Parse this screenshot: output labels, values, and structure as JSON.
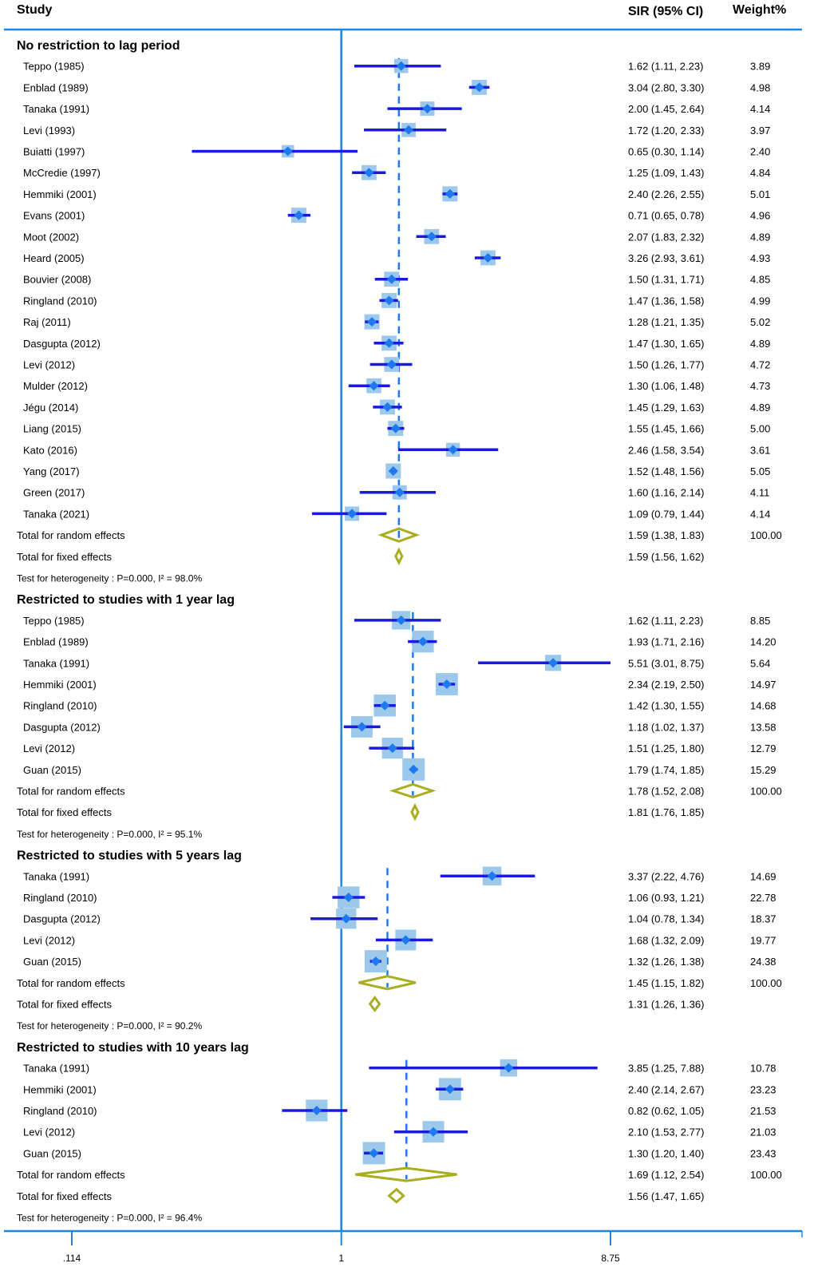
{
  "chart_data": {
    "type": "forest",
    "title": "",
    "xlabel": "",
    "ylabel": "",
    "x_scale": "log",
    "xlim": [
      0.114,
      8.75
    ],
    "x_ticks": [
      0.114,
      1,
      8.75
    ],
    "x_tick_labels": [
      ".114",
      "1",
      "8.75"
    ],
    "reference_line": 1,
    "columns": {
      "study": "Study",
      "estimate": "SIR (95% CI)",
      "weight": "Weight%"
    },
    "groups": [
      {
        "title": "No restriction to lag period",
        "studies": [
          {
            "name": "Teppo (1985)",
            "sir": 1.62,
            "lo": 1.11,
            "hi": 2.23,
            "ci": "1.62 (1.11, 2.23)",
            "weight": 3.89,
            "weight_label": "3.89"
          },
          {
            "name": "Enblad (1989)",
            "sir": 3.04,
            "lo": 2.8,
            "hi": 3.3,
            "ci": "3.04 (2.80, 3.30)",
            "weight": 4.98,
            "weight_label": "4.98"
          },
          {
            "name": "Tanaka (1991)",
            "sir": 2.0,
            "lo": 1.45,
            "hi": 2.64,
            "ci": "2.00 (1.45, 2.64)",
            "weight": 4.14,
            "weight_label": "4.14"
          },
          {
            "name": "Levi (1993)",
            "sir": 1.72,
            "lo": 1.2,
            "hi": 2.33,
            "ci": "1.72 (1.20, 2.33)",
            "weight": 3.97,
            "weight_label": "3.97"
          },
          {
            "name": "Buiatti (1997)",
            "sir": 0.65,
            "lo": 0.3,
            "hi": 1.14,
            "ci": "0.65 (0.30, 1.14)",
            "weight": 2.4,
            "weight_label": "2.40"
          },
          {
            "name": "McCredie (1997)",
            "sir": 1.25,
            "lo": 1.09,
            "hi": 1.43,
            "ci": "1.25 (1.09, 1.43)",
            "weight": 4.84,
            "weight_label": "4.84"
          },
          {
            "name": "Hemmiki (2001)",
            "sir": 2.4,
            "lo": 2.26,
            "hi": 2.55,
            "ci": "2.40 (2.26, 2.55)",
            "weight": 5.01,
            "weight_label": "5.01"
          },
          {
            "name": "Evans (2001)",
            "sir": 0.71,
            "lo": 0.65,
            "hi": 0.78,
            "ci": "0.71 (0.65, 0.78)",
            "weight": 4.96,
            "weight_label": "4.96"
          },
          {
            "name": "Moot (2002)",
            "sir": 2.07,
            "lo": 1.83,
            "hi": 2.32,
            "ci": "2.07 (1.83, 2.32)",
            "weight": 4.89,
            "weight_label": "4.89"
          },
          {
            "name": "Heard (2005)",
            "sir": 3.26,
            "lo": 2.93,
            "hi": 3.61,
            "ci": "3.26 (2.93, 3.61)",
            "weight": 4.93,
            "weight_label": "4.93"
          },
          {
            "name": "Bouvier (2008)",
            "sir": 1.5,
            "lo": 1.31,
            "hi": 1.71,
            "ci": "1.50 (1.31, 1.71)",
            "weight": 4.85,
            "weight_label": "4.85"
          },
          {
            "name": "Ringland (2010)",
            "sir": 1.47,
            "lo": 1.36,
            "hi": 1.58,
            "ci": "1.47 (1.36, 1.58)",
            "weight": 4.99,
            "weight_label": "4.99"
          },
          {
            "name": "Raj (2011)",
            "sir": 1.28,
            "lo": 1.21,
            "hi": 1.35,
            "ci": "1.28 (1.21, 1.35)",
            "weight": 5.02,
            "weight_label": "5.02"
          },
          {
            "name": "Dasgupta (2012)",
            "sir": 1.47,
            "lo": 1.3,
            "hi": 1.65,
            "ci": "1.47 (1.30, 1.65)",
            "weight": 4.89,
            "weight_label": "4.89"
          },
          {
            "name": "Levi (2012)",
            "sir": 1.5,
            "lo": 1.26,
            "hi": 1.77,
            "ci": "1.50 (1.26, 1.77)",
            "weight": 4.72,
            "weight_label": "4.72"
          },
          {
            "name": "Mulder (2012)",
            "sir": 1.3,
            "lo": 1.06,
            "hi": 1.48,
            "ci": "1.30 (1.06, 1.48)",
            "weight": 4.73,
            "weight_label": "4.73"
          },
          {
            "name": "Jégu (2014)",
            "sir": 1.45,
            "lo": 1.29,
            "hi": 1.63,
            "ci": "1.45 (1.29, 1.63)",
            "weight": 4.89,
            "weight_label": "4.89"
          },
          {
            "name": "Liang (2015)",
            "sir": 1.55,
            "lo": 1.45,
            "hi": 1.66,
            "ci": "1.55 (1.45, 1.66)",
            "weight": 5.0,
            "weight_label": "5.00"
          },
          {
            "name": "Kato (2016)",
            "sir": 2.46,
            "lo": 1.58,
            "hi": 3.54,
            "ci": "2.46 (1.58, 3.54)",
            "weight": 3.61,
            "weight_label": "3.61"
          },
          {
            "name": "Yang (2017)",
            "sir": 1.52,
            "lo": 1.48,
            "hi": 1.56,
            "ci": "1.52 (1.48, 1.56)",
            "weight": 5.05,
            "weight_label": "5.05"
          },
          {
            "name": "Green (2017)",
            "sir": 1.6,
            "lo": 1.16,
            "hi": 2.14,
            "ci": "1.60 (1.16, 2.14)",
            "weight": 4.11,
            "weight_label": "4.11"
          },
          {
            "name": "Tanaka (2021)",
            "sir": 1.09,
            "lo": 0.79,
            "hi": 1.44,
            "ci": "1.09 (0.79, 1.44)",
            "weight": 4.14,
            "weight_label": "4.14"
          }
        ],
        "random": {
          "label": "Total for random effects",
          "sir": 1.59,
          "lo": 1.38,
          "hi": 1.83,
          "ci": "1.59 (1.38, 1.83)",
          "weight_label": "100.00"
        },
        "fixed": {
          "label": "Total for fixed effects",
          "sir": 1.59,
          "lo": 1.56,
          "hi": 1.62,
          "ci": "1.59 (1.56, 1.62)"
        },
        "heterogeneity": "Test for heterogeneity : P=0.000, I² = 98.0%"
      },
      {
        "title": "Restricted to studies with 1 year lag",
        "studies": [
          {
            "name": "Teppo (1985)",
            "sir": 1.62,
            "lo": 1.11,
            "hi": 2.23,
            "ci": "1.62 (1.11, 2.23)",
            "weight": 8.85,
            "weight_label": "8.85"
          },
          {
            "name": "Enblad (1989)",
            "sir": 1.93,
            "lo": 1.71,
            "hi": 2.16,
            "ci": "1.93 (1.71, 2.16)",
            "weight": 14.2,
            "weight_label": "14.20"
          },
          {
            "name": "Tanaka (1991)",
            "sir": 5.51,
            "lo": 3.01,
            "hi": 8.75,
            "ci": "5.51 (3.01, 8.75)",
            "weight": 5.64,
            "weight_label": "5.64"
          },
          {
            "name": "Hemmiki (2001)",
            "sir": 2.34,
            "lo": 2.19,
            "hi": 2.5,
            "ci": "2.34 (2.19, 2.50)",
            "weight": 14.97,
            "weight_label": "14.97"
          },
          {
            "name": "Ringland (2010)",
            "sir": 1.42,
            "lo": 1.3,
            "hi": 1.55,
            "ci": "1.42 (1.30, 1.55)",
            "weight": 14.68,
            "weight_label": "14.68"
          },
          {
            "name": "Dasgupta (2012)",
            "sir": 1.18,
            "lo": 1.02,
            "hi": 1.37,
            "ci": "1.18 (1.02, 1.37)",
            "weight": 13.58,
            "weight_label": "13.58"
          },
          {
            "name": "Levi (2012)",
            "sir": 1.51,
            "lo": 1.25,
            "hi": 1.8,
            "ci": "1.51 (1.25, 1.80)",
            "weight": 12.79,
            "weight_label": "12.79"
          },
          {
            "name": "Guan (2015)",
            "sir": 1.79,
            "lo": 1.74,
            "hi": 1.85,
            "ci": "1.79 (1.74, 1.85)",
            "weight": 15.29,
            "weight_label": "15.29"
          }
        ],
        "random": {
          "label": "Total for random effects",
          "sir": 1.78,
          "lo": 1.52,
          "hi": 2.08,
          "ci": "1.78 (1.52, 2.08)",
          "weight_label": "100.00"
        },
        "fixed": {
          "label": "Total for fixed effects",
          "sir": 1.81,
          "lo": 1.76,
          "hi": 1.85,
          "ci": "1.81 (1.76, 1.85)"
        },
        "heterogeneity": "Test for heterogeneity : P=0.000, I² = 95.1%"
      },
      {
        "title": "Restricted to studies with 5 years lag",
        "studies": [
          {
            "name": "Tanaka (1991)",
            "sir": 3.37,
            "lo": 2.22,
            "hi": 4.76,
            "ci": "3.37 (2.22, 4.76)",
            "weight": 14.69,
            "weight_label": "14.69"
          },
          {
            "name": "Ringland (2010)",
            "sir": 1.06,
            "lo": 0.93,
            "hi": 1.21,
            "ci": "1.06 (0.93, 1.21)",
            "weight": 22.78,
            "weight_label": "22.78"
          },
          {
            "name": "Dasgupta (2012)",
            "sir": 1.04,
            "lo": 0.78,
            "hi": 1.34,
            "ci": "1.04 (0.78, 1.34)",
            "weight": 18.37,
            "weight_label": "18.37"
          },
          {
            "name": "Levi (2012)",
            "sir": 1.68,
            "lo": 1.32,
            "hi": 2.09,
            "ci": "1.68 (1.32, 2.09)",
            "weight": 19.77,
            "weight_label": "19.77"
          },
          {
            "name": "Guan (2015)",
            "sir": 1.32,
            "lo": 1.26,
            "hi": 1.38,
            "ci": "1.32 (1.26, 1.38)",
            "weight": 24.38,
            "weight_label": "24.38"
          }
        ],
        "random": {
          "label": "Total for random effects",
          "sir": 1.45,
          "lo": 1.15,
          "hi": 1.82,
          "ci": "1.45 (1.15, 1.82)",
          "weight_label": "100.00"
        },
        "fixed": {
          "label": "Total for fixed effects",
          "sir": 1.31,
          "lo": 1.26,
          "hi": 1.36,
          "ci": "1.31 (1.26, 1.36)"
        },
        "heterogeneity": "Test for heterogeneity : P=0.000, I² = 90.2%"
      },
      {
        "title": "Restricted to studies with 10 years lag",
        "studies": [
          {
            "name": "Tanaka (1991)",
            "sir": 3.85,
            "lo": 1.25,
            "hi": 7.88,
            "ci": "3.85 (1.25, 7.88)",
            "weight": 10.78,
            "weight_label": "10.78"
          },
          {
            "name": "Hemmiki (2001)",
            "sir": 2.4,
            "lo": 2.14,
            "hi": 2.67,
            "ci": "2.40 (2.14, 2.67)",
            "weight": 23.23,
            "weight_label": "23.23"
          },
          {
            "name": "Ringland (2010)",
            "sir": 0.82,
            "lo": 0.62,
            "hi": 1.05,
            "ci": "0.82 (0.62, 1.05)",
            "weight": 21.53,
            "weight_label": "21.53"
          },
          {
            "name": "Levi (2012)",
            "sir": 2.1,
            "lo": 1.53,
            "hi": 2.77,
            "ci": "2.10 (1.53, 2.77)",
            "weight": 21.03,
            "weight_label": "21.03"
          },
          {
            "name": "Guan (2015)",
            "sir": 1.3,
            "lo": 1.2,
            "hi": 1.4,
            "ci": "1.30 (1.20, 1.40)",
            "weight": 23.43,
            "weight_label": "23.43"
          }
        ],
        "random": {
          "label": "Total for random effects",
          "sir": 1.69,
          "lo": 1.12,
          "hi": 2.54,
          "ci": "1.69 (1.12, 2.54)",
          "weight_label": "100.00"
        },
        "fixed": {
          "label": "Total for fixed effects",
          "sir": 1.56,
          "lo": 1.47,
          "hi": 1.65,
          "ci": "1.56 (1.47, 1.65)"
        },
        "heterogeneity": "Test for heterogeneity : P=0.000, I² = 96.4%"
      }
    ]
  },
  "colors": {
    "ci_line": "#1a1adb",
    "marker": "#1e78f0",
    "weight_box": "#9cc8ec",
    "axis": "#1c86e0",
    "summary_diamond": "#a8ad22"
  }
}
